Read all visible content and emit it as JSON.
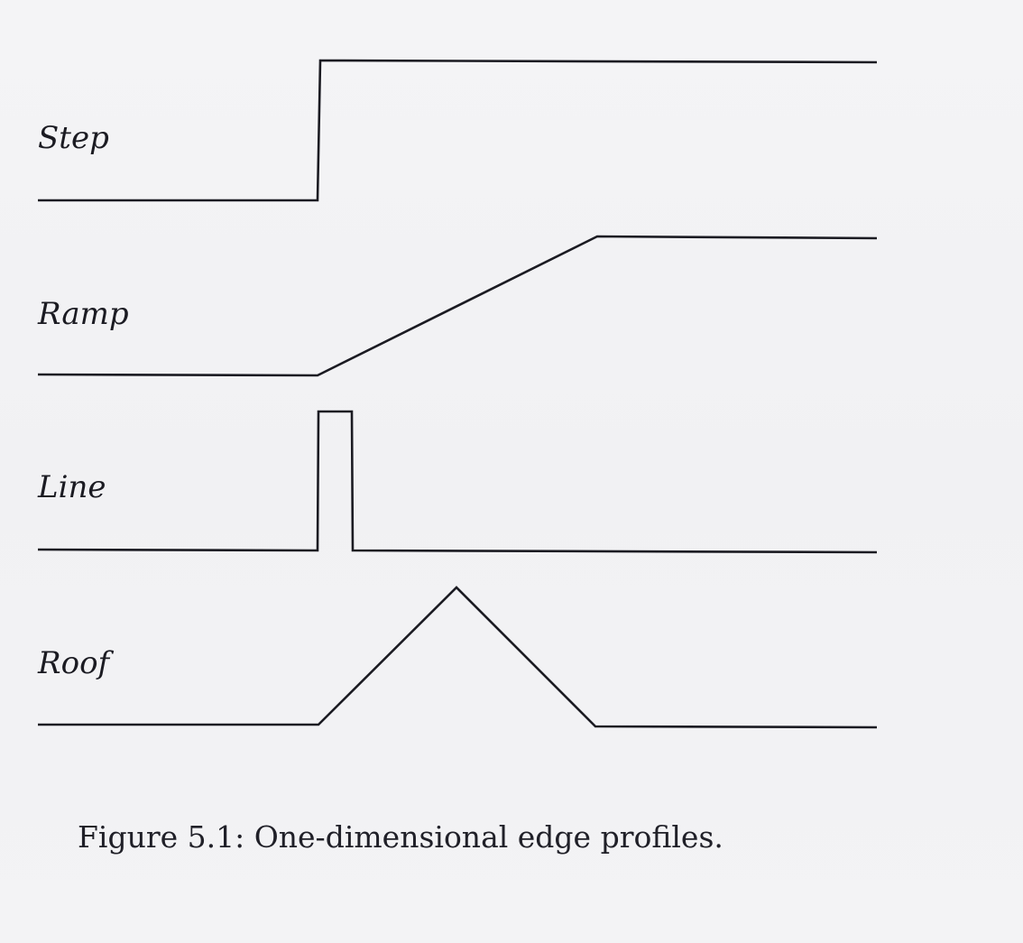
{
  "diagram": {
    "profiles": [
      {
        "id": "step",
        "label": "Step",
        "shape": "step"
      },
      {
        "id": "ramp",
        "label": "Ramp",
        "shape": "ramp"
      },
      {
        "id": "line",
        "label": "Line",
        "shape": "line"
      },
      {
        "id": "roof",
        "label": "Roof",
        "shape": "roof"
      }
    ],
    "stroke_color": "#1b1b22"
  },
  "caption": "Figure 5.1:  One-dimensional edge profiles."
}
